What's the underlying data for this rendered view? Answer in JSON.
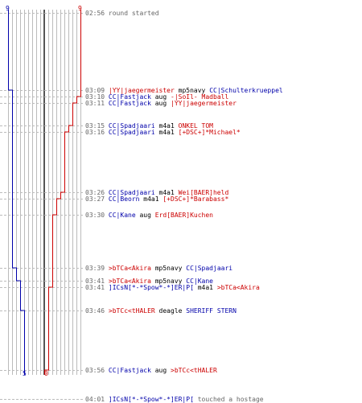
{
  "colors": {
    "ct": "#0000aa",
    "t": "#cc0000",
    "grid": "#bbbbbb",
    "axis": "#555555",
    "time": "#666666"
  },
  "scores": {
    "ct_start": "9",
    "t_start": "9",
    "ct_end": "5",
    "t_end": "0"
  },
  "events": [
    {
      "time": "02:56",
      "message": "round started"
    },
    {
      "time": "03:09",
      "killer": "|YY|jaegermeister",
      "killer_team": "t",
      "weapon": "mp5navy",
      "victim": "CC|Schulterkrueppel",
      "victim_team": "ct"
    },
    {
      "time": "03:10",
      "killer": "CC|Fastjack",
      "killer_team": "ct",
      "weapon": "aug",
      "victim": "-|SoIl- Madball",
      "victim_team": "t"
    },
    {
      "time": "03:11",
      "killer": "CC|Fastjack",
      "killer_team": "ct",
      "weapon": "aug",
      "victim": "|YY|jaegermeister",
      "victim_team": "t"
    },
    {
      "time": "03:15",
      "killer": "CC|Spadjaari",
      "killer_team": "ct",
      "weapon": "m4a1",
      "victim": "ONKEL TOM",
      "victim_team": "t"
    },
    {
      "time": "03:16",
      "killer": "CC|Spadjaari",
      "killer_team": "ct",
      "weapon": "m4a1",
      "victim": "[+DSC+]*Michael*",
      "victim_team": "t"
    },
    {
      "time": "03:26",
      "killer": "CC|Spadjaari",
      "killer_team": "ct",
      "weapon": "m4a1",
      "victim": "Wei[BAER]held",
      "victim_team": "t"
    },
    {
      "time": "03:27",
      "killer": "CC|Beorn",
      "killer_team": "ct",
      "weapon": "m4a1",
      "victim": "[+DSC+]*Barabass*",
      "victim_team": "t"
    },
    {
      "time": "03:30",
      "killer": "CC|Kane",
      "killer_team": "ct",
      "weapon": "aug",
      "victim": "Erd[BAER]Kuchen",
      "victim_team": "t"
    },
    {
      "time": "03:39",
      "killer": ">bTCa<Akira",
      "killer_team": "t",
      "weapon": "mp5navy",
      "victim": "CC|Spadjaari",
      "victim_team": "ct"
    },
    {
      "time": "03:41",
      "killer": ">bTCa<Akira",
      "killer_team": "t",
      "weapon": "mp5navy",
      "victim": "CC|Kane",
      "victim_team": "ct"
    },
    {
      "time": "03:41",
      "killer": "]ICsN[*-*Spow*-*]ER|P[",
      "killer_team": "ct",
      "weapon": "m4a1",
      "victim": ">bTCa<Akira",
      "victim_team": "t"
    },
    {
      "time": "03:46",
      "killer": ">bTCc<tHALER",
      "killer_team": "t",
      "weapon": "deagle",
      "victim": "SHERIFF STERN",
      "victim_team": "ct"
    },
    {
      "time": "03:56",
      "killer": "CC|Fastjack",
      "killer_team": "ct",
      "weapon": "aug",
      "victim": ">bTCc<tHALER",
      "victim_team": "t"
    },
    {
      "time": "04:01",
      "killer": "]ICsN[*-*Spow*-*]ER|P[",
      "killer_team": "ct",
      "message": "touched a hostage"
    }
  ]
}
